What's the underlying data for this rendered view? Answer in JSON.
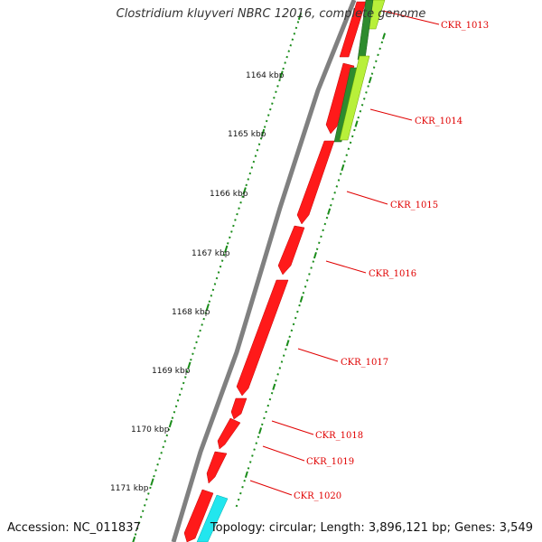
{
  "header": {
    "title": "Clostridium kluyveri NBRC 12016, complete genome"
  },
  "footer": {
    "accession": "Accession: NC_011837",
    "summary": "Topology: circular; Length: 3,896,121 bp; Genes: 3,549"
  },
  "colors": {
    "backbone": "#808080",
    "gene_forward": "#ff1a1a",
    "gene_light_green": "#b8f03a",
    "gene_dark_green": "#2e8b2e",
    "gene_cyan": "#22e6ee",
    "ticks": "#1a8c1a",
    "label": "#e00000"
  },
  "ruler": {
    "labels": [
      "1164 kbp",
      "1165 kbp",
      "1166 kbp",
      "1167 kbp",
      "1168 kbp",
      "1169 kbp",
      "1170 kbp",
      "1171 kbp"
    ]
  },
  "genes": [
    {
      "label": "CKR_1013"
    },
    {
      "label": "CKR_1014"
    },
    {
      "label": "CKR_1015"
    },
    {
      "label": "CKR_1016"
    },
    {
      "label": "CKR_1017"
    },
    {
      "label": "CKR_1018"
    },
    {
      "label": "CKR_1019"
    },
    {
      "label": "CKR_1020"
    }
  ]
}
